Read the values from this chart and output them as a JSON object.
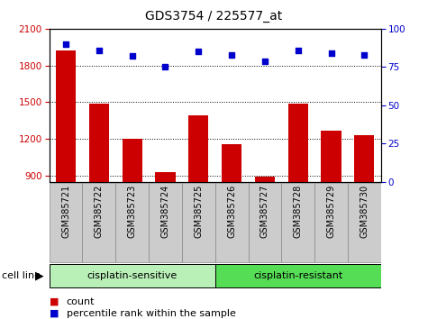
{
  "title": "GDS3754 / 225577_at",
  "samples": [
    "GSM385721",
    "GSM385722",
    "GSM385723",
    "GSM385724",
    "GSM385725",
    "GSM385726",
    "GSM385727",
    "GSM385728",
    "GSM385729",
    "GSM385730"
  ],
  "counts": [
    1920,
    1490,
    1200,
    930,
    1390,
    1160,
    895,
    1490,
    1270,
    1230
  ],
  "percentile_ranks": [
    90,
    86,
    82,
    75,
    85,
    83,
    79,
    86,
    84,
    83
  ],
  "ylim_left": [
    850,
    2100
  ],
  "ylim_right": [
    0,
    100
  ],
  "yticks_left": [
    900,
    1200,
    1500,
    1800,
    2100
  ],
  "yticks_right": [
    0,
    25,
    50,
    75,
    100
  ],
  "bar_color": "#cc0000",
  "scatter_color": "#0000cc",
  "group1_label": "cisplatin-sensitive",
  "group2_label": "cisplatin-resistant",
  "group1_color": "#b8f0b8",
  "group2_color": "#55dd55",
  "group1_indices": [
    0,
    1,
    2,
    3,
    4
  ],
  "group2_indices": [
    5,
    6,
    7,
    8,
    9
  ],
  "cell_line_label": "cell line",
  "legend_count_label": "count",
  "legend_pct_label": "percentile rank within the sample",
  "bar_width": 0.6,
  "tick_bg_color": "#cccccc",
  "tick_border_color": "#888888"
}
